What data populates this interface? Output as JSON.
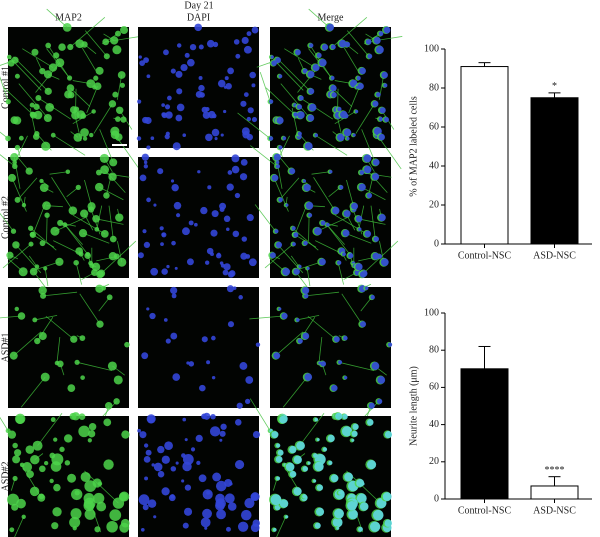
{
  "figure": {
    "title": "Day 21",
    "columns": [
      "MAP2",
      "DAPI",
      "Merge"
    ],
    "rows": [
      "Control #1",
      "Control #2",
      "ASD#1",
      "ASD#2"
    ]
  },
  "chart_data": [
    {
      "type": "bar",
      "ylabel": "% of MAP2 labeled cells",
      "categories": [
        "Control-NSC",
        "ASD-NSC"
      ],
      "values": [
        91,
        75
      ],
      "errors": [
        2,
        2.5
      ],
      "colors": [
        "#ffffff",
        "#000000"
      ],
      "ylim": [
        0,
        100
      ],
      "yticks": [
        0,
        20,
        40,
        60,
        80,
        100
      ],
      "annotations": [
        {
          "text": "*",
          "index": 1
        }
      ]
    },
    {
      "type": "bar",
      "ylabel": "Neurite length (μm)",
      "categories": [
        "Control-NSC",
        "ASD-NSC"
      ],
      "values": [
        70,
        7
      ],
      "errors": [
        12,
        5
      ],
      "colors": [
        "#000000",
        "#ffffff"
      ],
      "ylim": [
        0,
        100
      ],
      "yticks": [
        0,
        20,
        40,
        60,
        80,
        100
      ],
      "annotations": [
        {
          "text": "****",
          "index": 1
        }
      ]
    }
  ]
}
